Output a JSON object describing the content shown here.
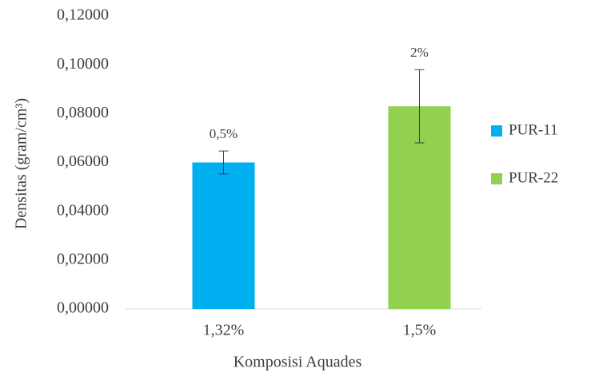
{
  "chart_data": {
    "type": "bar",
    "x_label": "Komposisi Aquades",
    "y_label": "Densitas (gram/cm³)",
    "categories": [
      "1,32%",
      "1,5%"
    ],
    "series": [
      {
        "name": "PUR-11",
        "color": "#00b0f0",
        "values": [
          0.06,
          null
        ],
        "errors": [
          0.0047,
          null
        ],
        "value_labels": [
          "0,5%",
          null
        ]
      },
      {
        "name": "PUR-22",
        "color": "#92d050",
        "values": [
          null,
          0.083
        ],
        "errors": [
          null,
          0.015
        ],
        "value_labels": [
          null,
          "2%"
        ]
      }
    ],
    "ylim": [
      0,
      0.12
    ],
    "yticks": [
      {
        "value": 0,
        "label": "0,00000"
      },
      {
        "value": 0.02,
        "label": "0,02000"
      },
      {
        "value": 0.04,
        "label": "0,04000"
      },
      {
        "value": 0.06,
        "label": "0,06000"
      },
      {
        "value": 0.08,
        "label": "0,08000"
      },
      {
        "value": 0.1,
        "label": "0,10000"
      },
      {
        "value": 0.12,
        "label": "0,12000"
      }
    ],
    "legend": "right"
  }
}
